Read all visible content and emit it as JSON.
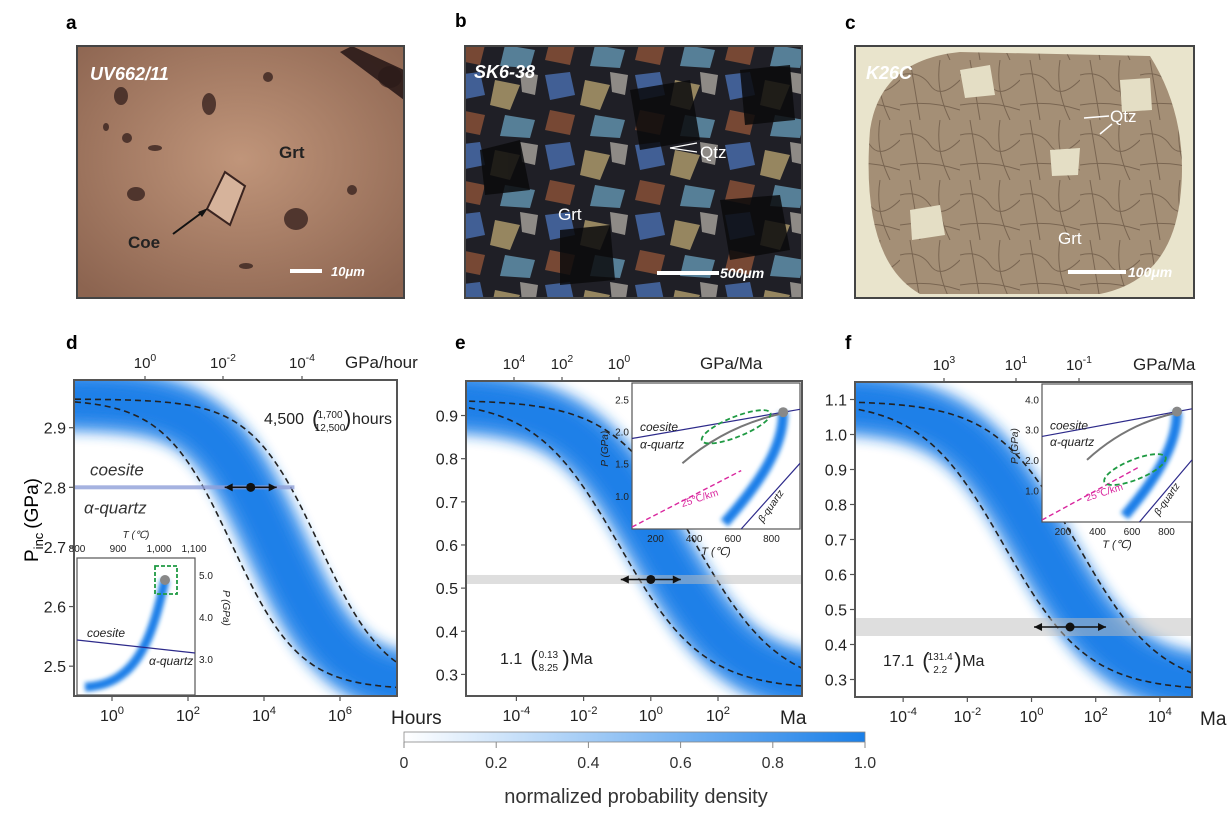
{
  "panel_letters": {
    "a": "a",
    "b": "b",
    "c": "c",
    "d": "d",
    "e": "e",
    "f": "f"
  },
  "photos": [
    {
      "sample": "UV662/11",
      "labels": [
        "Grt",
        "Coe"
      ],
      "scale": "10μm",
      "tone": "#a87c62"
    },
    {
      "sample": "SK6-38",
      "labels": [
        "Qtz",
        "Grt"
      ],
      "scale": "500μm",
      "tone": "#2a2a30"
    },
    {
      "sample": "K26C",
      "labels": [
        "Qtz",
        "Grt"
      ],
      "scale": "100μm",
      "tone": "#a9957d"
    }
  ],
  "colors": {
    "density": "#1a7fe8",
    "boundary": "#2d2a8a",
    "geotherm": "#d9279e",
    "box": "#1f9a43",
    "path": "#777777"
  },
  "colorbar": {
    "ticks": [
      "0",
      "0.2",
      "0.4",
      "0.6",
      "0.8",
      "1.0"
    ],
    "label": "normalized probability density"
  },
  "chart_data": [
    {
      "type": "heatmap",
      "panel": "d",
      "ylabel": "P_inc (GPa)",
      "ylabel_main": "P",
      "ylabel_sub": "inc",
      "ylabel_unit": "(GPa)",
      "ylim": [
        2.45,
        2.98
      ],
      "yticks": [
        "2.5",
        "2.6",
        "2.7",
        "2.8",
        "2.9"
      ],
      "xaxis_scale": "log",
      "xlim_log10": [
        -1,
        7.5
      ],
      "xticks_log10": [
        0,
        2,
        4,
        6
      ],
      "xunit": "Hours",
      "top_axis": {
        "ticks_log10": [
          0,
          -2,
          -4
        ],
        "unit": "GPa/hour"
      },
      "phase_line": {
        "p": 2.8,
        "above": "coesite",
        "below": "α-quartz"
      },
      "estimate": {
        "value": "4,500",
        "upper": "1,700",
        "lower": "12,500",
        "unit": "hours",
        "x_log10": 3.65,
        "p": 2.8
      },
      "inset": {
        "xlabel": "T (℃)",
        "ylabel": "P (GPa)",
        "xticks": [
          "800",
          "900",
          "1,000",
          "1,100"
        ],
        "yticks": [
          "3.0",
          "4.0",
          "5.0"
        ],
        "labels": [
          "coesite",
          "α-quartz"
        ]
      }
    },
    {
      "type": "heatmap",
      "panel": "e",
      "ylim": [
        0.25,
        0.98
      ],
      "yticks": [
        "0.3",
        "0.4",
        "0.5",
        "0.6",
        "0.7",
        "0.8",
        "0.9"
      ],
      "xaxis_scale": "log",
      "xlim_log10": [
        -5.5,
        4.5
      ],
      "xticks_log10": [
        -4,
        -2,
        0,
        2
      ],
      "xunit": "Ma",
      "top_axis": {
        "ticks_log10": [
          4,
          2,
          0
        ],
        "unit": "GPa/Ma"
      },
      "estimate": {
        "value": "1.1",
        "upper": "0.13",
        "lower": "8.25",
        "unit": "Ma",
        "x_log10": 0.0,
        "p": 0.52
      },
      "inset": {
        "xlabel": "T (℃)",
        "ylabel": "P (GPa)",
        "xticks": [
          "200",
          "400",
          "600",
          "800"
        ],
        "yticks": [
          "1.0",
          "1.5",
          "2.0",
          "2.5"
        ],
        "labels": [
          "coesite",
          "α-quartz",
          "β-quartz",
          "25℃/km"
        ]
      }
    },
    {
      "type": "heatmap",
      "panel": "f",
      "ylim": [
        0.25,
        1.15
      ],
      "yticks": [
        "0.3",
        "0.4",
        "0.5",
        "0.6",
        "0.7",
        "0.8",
        "0.9",
        "1.0",
        "1.1"
      ],
      "xaxis_scale": "log",
      "xlim_log10": [
        -5.5,
        5
      ],
      "xticks_log10": [
        -4,
        -2,
        0,
        2,
        4
      ],
      "xunit": "Ma",
      "top_axis": {
        "ticks_log10": [
          3,
          1,
          -1
        ],
        "unit": "GPa/Ma"
      },
      "estimate": {
        "value": "17.1",
        "upper": "131.4",
        "lower": "2.2",
        "unit": "Ma",
        "x_log10": 1.2,
        "p": 0.45
      },
      "inset": {
        "xlabel": "T (℃)",
        "ylabel": "P (GPa)",
        "xticks": [
          "200",
          "400",
          "600",
          "800"
        ],
        "yticks": [
          "1.0",
          "2.0",
          "3.0",
          "4.0"
        ],
        "labels": [
          "coesite",
          "α-quartz",
          "β-quartz",
          "25℃/km"
        ]
      }
    }
  ]
}
